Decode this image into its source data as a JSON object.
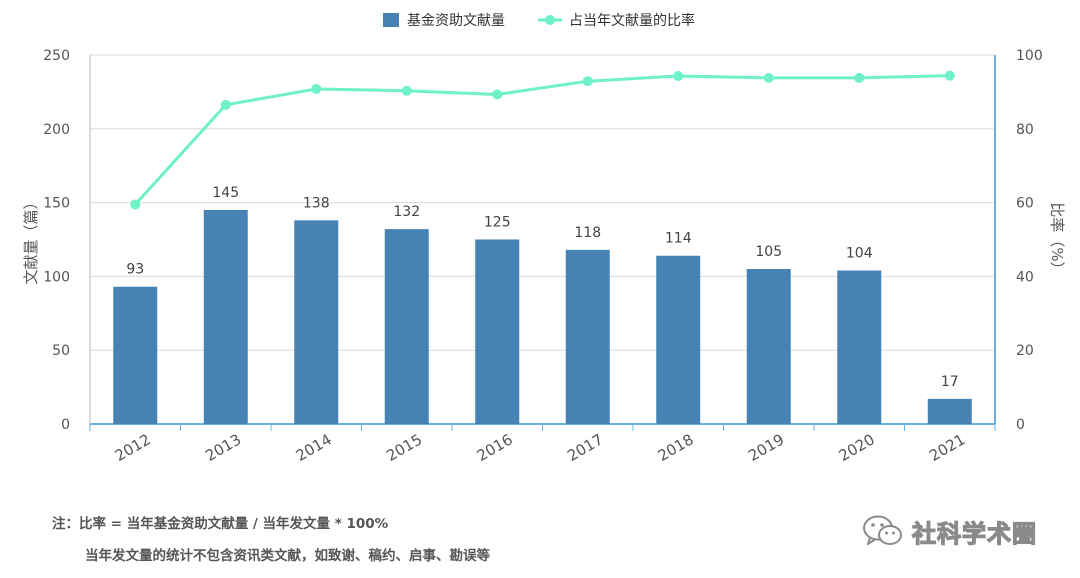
{
  "chart_data": {
    "type": "bar+line",
    "categories": [
      "2012",
      "2013",
      "2014",
      "2015",
      "2016",
      "2017",
      "2018",
      "2019",
      "2020",
      "2021"
    ],
    "series": [
      {
        "name": "基金资助文献量",
        "type": "bar",
        "axis": "left",
        "color": "#4682b4",
        "values": [
          93,
          145,
          138,
          132,
          125,
          118,
          114,
          105,
          104,
          17
        ]
      },
      {
        "name": "占当年文献量的比率",
        "type": "line",
        "axis": "right",
        "color": "#6ef0c8",
        "values": [
          59.5,
          86.5,
          90.8,
          90.3,
          89.3,
          92.9,
          94.3,
          93.8,
          93.8,
          94.4
        ]
      }
    ],
    "ylabel": "文献量（篇）",
    "ylabel_right": "比率（%）",
    "ylim": [
      0,
      250
    ],
    "yticks": [
      0,
      50,
      100,
      150,
      200,
      250
    ],
    "ylim_right": [
      0,
      100
    ],
    "yticks_right": [
      0,
      20,
      40,
      60,
      80,
      100
    ],
    "legend_position": "top-center",
    "grid": true,
    "show_data_labels": true
  },
  "notes": {
    "line1": "注：比率 = 当年基金资助文献量 / 当年发文量 * 100%",
    "line2": "当年发文量的统计不包含资讯类文献，如致谢、稿约、启事、勘误等"
  },
  "watermark": {
    "text": "社科学术圈",
    "icon": "wechat-icon"
  }
}
